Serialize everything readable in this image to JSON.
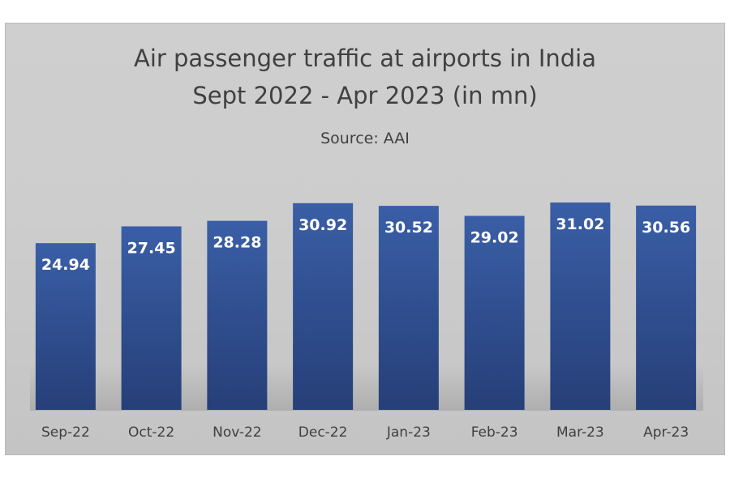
{
  "chart_data": {
    "type": "bar",
    "title": "Air passenger traffic at airports in India",
    "subtitle": "Sept 2022 - Apr 2023 (in mn)",
    "source": "Source: AAI",
    "categories": [
      "Sep-22",
      "Oct-22",
      "Nov-22",
      "Dec-22",
      "Jan-23",
      "Feb-23",
      "Mar-23",
      "Apr-23"
    ],
    "values": [
      24.94,
      27.45,
      28.28,
      30.92,
      30.52,
      29.02,
      31.02,
      30.56
    ],
    "value_labels": [
      "24.94",
      "27.45",
      "28.28",
      "30.92",
      "30.52",
      "29.02",
      "31.02",
      "30.56"
    ],
    "ylim": [
      0,
      33.5
    ],
    "grid": false,
    "legend": "none",
    "colors": {
      "bar_top": "#3a5ea6",
      "bar_bottom": "#263f78",
      "frame_background": "#cdcdcd",
      "text": "#404040"
    }
  }
}
